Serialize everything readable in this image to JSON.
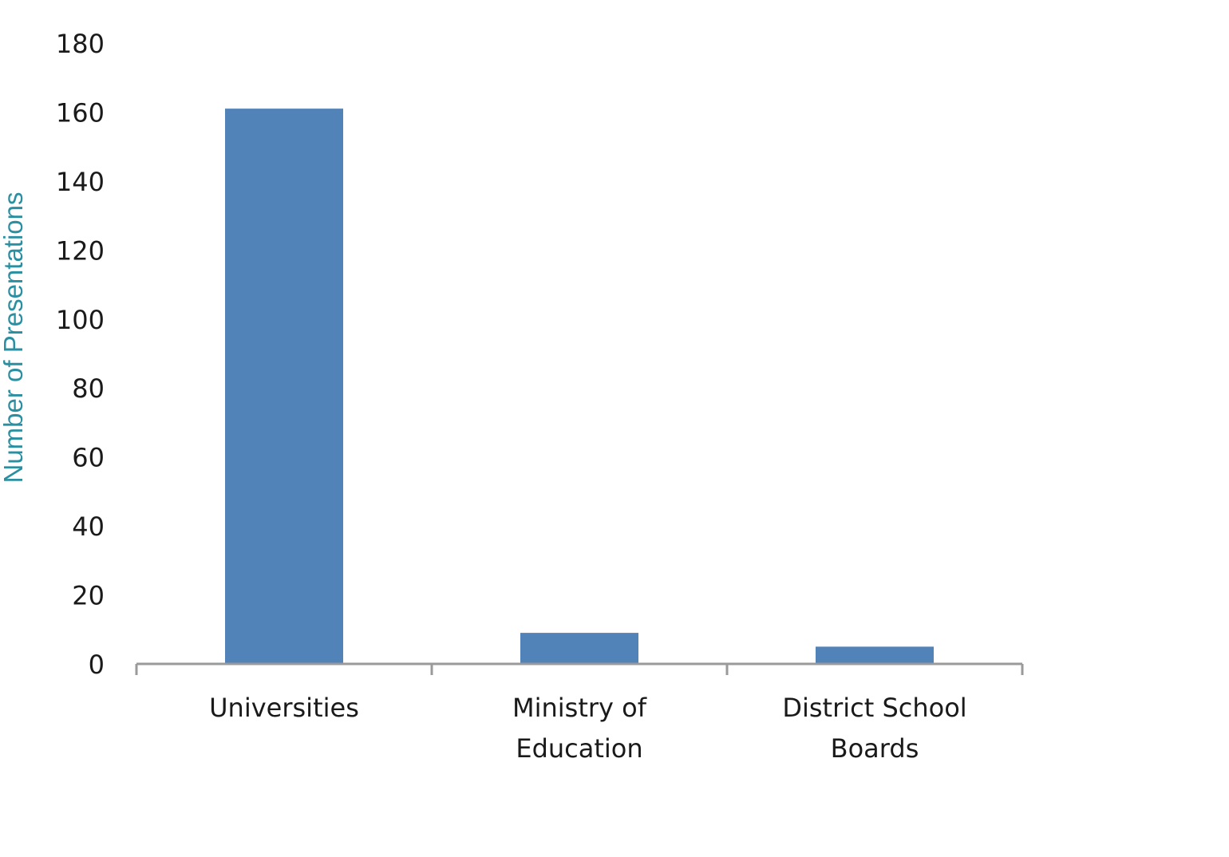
{
  "chart_data": {
    "type": "bar",
    "categories": [
      [
        "Universities"
      ],
      [
        "Ministry of",
        "Education"
      ],
      [
        "District School",
        "Boards"
      ]
    ],
    "values": [
      161,
      9,
      5
    ],
    "title": "",
    "xlabel": "",
    "ylabel": "Number of Presentations",
    "ylim": [
      0,
      180
    ],
    "yticks": [
      0,
      20,
      40,
      60,
      80,
      100,
      120,
      140,
      160,
      180
    ],
    "grid": false,
    "legend": "none",
    "colors": {
      "bar": "#5283b8",
      "axis": "#9a9a9a",
      "ylabel": "#2a8fa0"
    }
  }
}
